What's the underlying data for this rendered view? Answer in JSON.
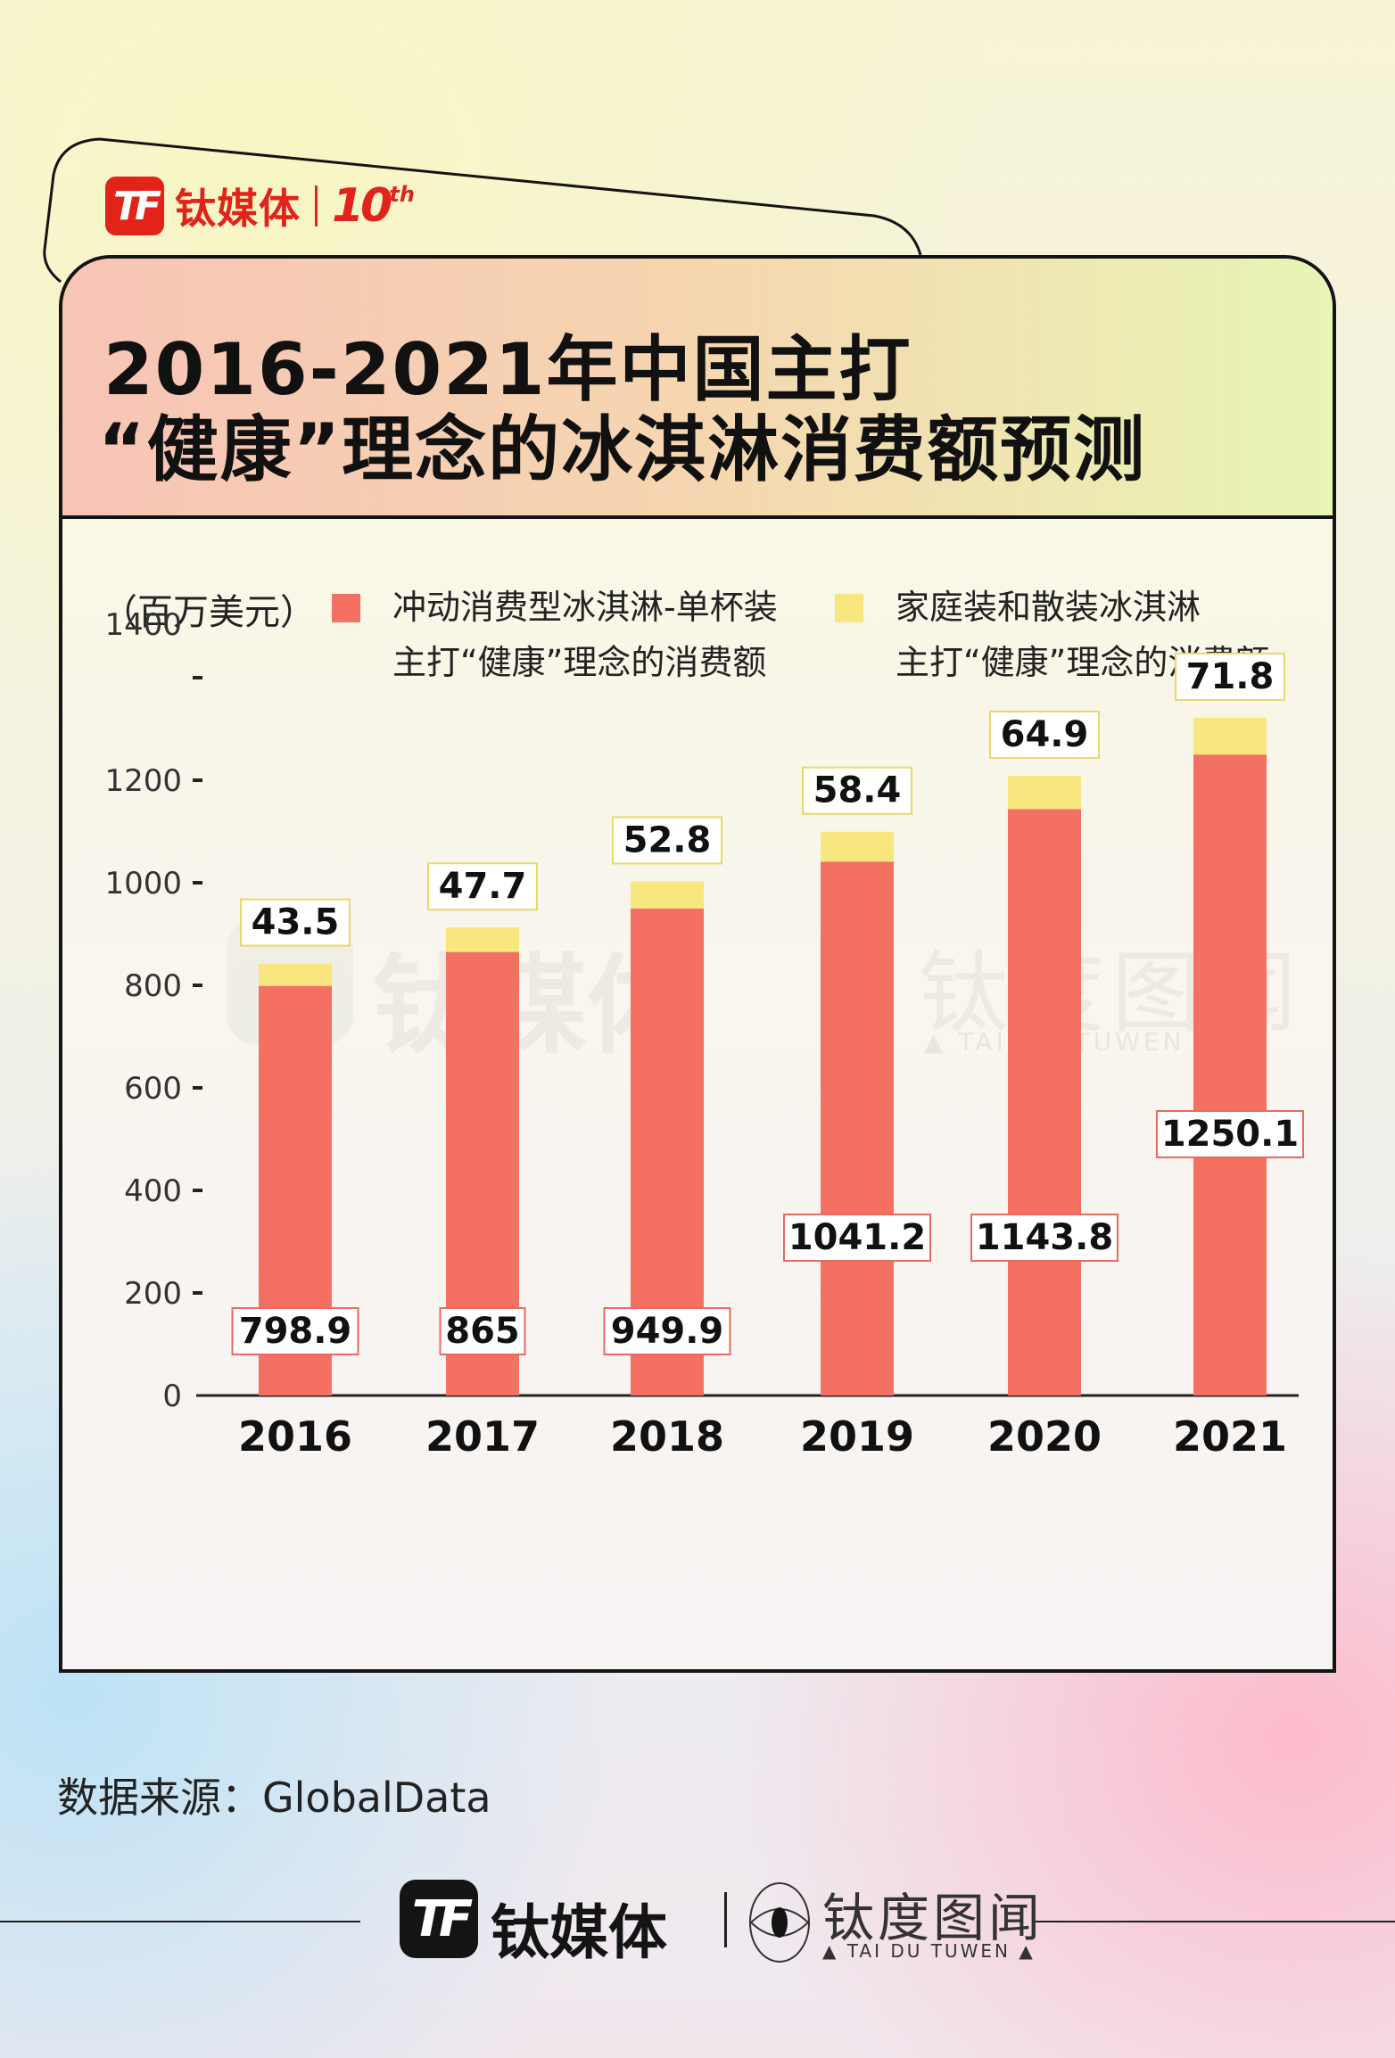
{
  "brand": {
    "logo_mark": "TF",
    "name": "钛媒体",
    "anniversary": "10",
    "anniversary_suffix": "th"
  },
  "title": {
    "line1": "2016-2021年中国主打",
    "line2": "“健康”理念的冰淇淋消费额预测"
  },
  "chart_data": {
    "type": "bar",
    "stacked": true,
    "unit": "（百万美元）",
    "categories": [
      "2016",
      "2017",
      "2018",
      "2019",
      "2020",
      "2021"
    ],
    "series": [
      {
        "name": "冲动消费型冰淇淋-单杯装主打“健康”理念的消费额",
        "legend_line1": "冲动消费型冰淇淋-单杯装",
        "legend_line2": "主打“健康”理念的消费额",
        "color": "#f47062",
        "values": [
          798.9,
          865,
          949.9,
          1041.2,
          1143.8,
          1250.1
        ],
        "labels": [
          "798.9",
          "865",
          "949.9",
          "1041.2",
          "1143.8",
          "1250.1"
        ]
      },
      {
        "name": "家庭装和散装冰淇淋主打“健康”理念的消费额",
        "legend_line1": "家庭装和散装冰淇淋",
        "legend_line2": "主打“健康”理念的消费额",
        "color": "#f8e77e",
        "values": [
          43.5,
          47.7,
          52.8,
          58.4,
          64.9,
          71.8
        ],
        "labels": [
          "43.5",
          "47.7",
          "52.8",
          "58.4",
          "64.9",
          "71.8"
        ]
      }
    ],
    "yticks": [
      0,
      200,
      400,
      600,
      800,
      1000,
      1200,
      1400
    ],
    "ytick_labels": [
      "0",
      "200",
      "400",
      "600",
      "800",
      "1000",
      "1200",
      "1400"
    ],
    "ylim": [
      0,
      1400
    ],
    "grid": false,
    "legend_position": "top"
  },
  "source": "数据来源：GlobalData",
  "watermark": {
    "left": "钛媒体",
    "right": "钛度图闻",
    "right_sub": "▲ TAI DU TUWEN ▲"
  },
  "footer": {
    "logo_mark": "TF",
    "name": "钛媒体",
    "taidu": "钛度图闻",
    "taidu_sub": "▲ TAI DU TUWEN ▲"
  }
}
